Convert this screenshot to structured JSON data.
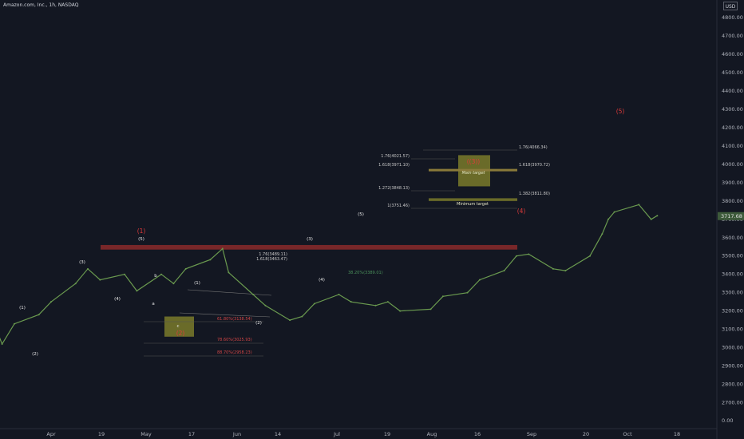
{
  "header": {
    "title": "Amazon.com, Inc., 1h, NASDAQ",
    "currency": "USD"
  },
  "chart_data": {
    "type": "line",
    "title": "Amazon.com, Inc., 1h, NASDAQ",
    "ylim": [
      2650,
      4850
    ],
    "y_ticks": [
      2700,
      2800,
      2900,
      3000,
      3100,
      3200,
      3300,
      3400,
      3500,
      3600,
      3700,
      3800,
      3900,
      4000,
      4100,
      4200,
      4300,
      4400,
      4500,
      4600,
      4700,
      4800
    ],
    "y_zero_label": "0.00",
    "x_tick_labels": [
      "Apr",
      "19",
      "May",
      "17",
      "Jun",
      "14",
      "Jul",
      "19",
      "Aug",
      "16",
      "Sep",
      "20",
      "Oct",
      "18"
    ],
    "current_price": "3717.68",
    "grid": false,
    "series": [
      {
        "x": [
          "2021-03-18",
          "2021-03-22",
          "2021-03-24",
          "2021-03-26",
          "2021-03-30",
          "2021-04-01",
          "2021-04-05",
          "2021-04-07",
          "2021-04-09",
          "2021-04-13",
          "2021-04-15",
          "2021-04-19",
          "2021-04-21",
          "2021-04-23",
          "2021-04-27",
          "2021-04-29",
          "2021-04-30",
          "2021-05-04",
          "2021-05-06",
          "2021-05-10",
          "2021-05-12",
          "2021-05-14",
          "2021-05-18",
          "2021-05-20",
          "2021-05-24",
          "2021-05-26",
          "2021-05-28",
          "2021-06-02",
          "2021-06-04",
          "2021-06-08",
          "2021-06-10",
          "2021-06-14",
          "2021-06-16",
          "2021-06-18",
          "2021-06-22",
          "2021-06-24",
          "2021-06-28",
          "2021-06-30",
          "2021-07-01",
          "2021-07-02",
          "2021-07-06",
          "2021-07-08",
          "2021-07-09"
        ],
        "values": [
          3110,
          3190,
          3020,
          3130,
          3180,
          3250,
          3350,
          3430,
          3370,
          3400,
          3310,
          3400,
          3350,
          3430,
          3480,
          3540,
          3410,
          3290,
          3230,
          3150,
          3170,
          3240,
          3290,
          3250,
          3230,
          3250,
          3200,
          3210,
          3280,
          3300,
          3370,
          3420,
          3500,
          3510,
          3430,
          3420,
          3500,
          3620,
          3700,
          3740,
          3780,
          3700,
          3720
        ]
      }
    ],
    "zones": [
      {
        "label": "",
        "y": [
          3535,
          3560
        ]
      },
      {
        "label": "Main target",
        "y": [
          3880,
          4050
        ]
      },
      {
        "label": "Minimum target",
        "y": [
          3800,
          3815
        ]
      },
      {
        "label": "",
        "y": [
          3060,
          3170
        ]
      }
    ],
    "fib_levels": [
      "1.76(4066.34)",
      "1.76(4021.57)",
      "1.618(3971.10)",
      "1.618(3970.72)",
      "1.272(3848.13)",
      "1.382(3811.80)",
      "1(3751.46)",
      "1.76(3489.11)",
      "1.618(3463.47)",
      "38.20%(3389.01)",
      "61.80%(3138.54)",
      "78.60%(3025.93)",
      "88.70%(2958.23)"
    ],
    "wave_labels": {
      "red": [
        "(1)",
        "(5)",
        "(4)",
        "((3))",
        "(2)"
      ],
      "white": [
        "(1)",
        "(2)",
        "(3)",
        "(4)",
        "(5)",
        "a",
        "b",
        "c",
        "(1)",
        "(2)",
        "(3)",
        "(4)",
        "(5)"
      ]
    }
  },
  "colors": {
    "background": "#131722",
    "price_line": "#6a9a4f",
    "zone_red": "#8b2a2a",
    "zone_olive": "#7a7a2a",
    "label_red": "#e03a3a",
    "fib_white": "#c8c8c8",
    "fib_red": "#d04545",
    "fib_green": "#4a8f5a"
  }
}
